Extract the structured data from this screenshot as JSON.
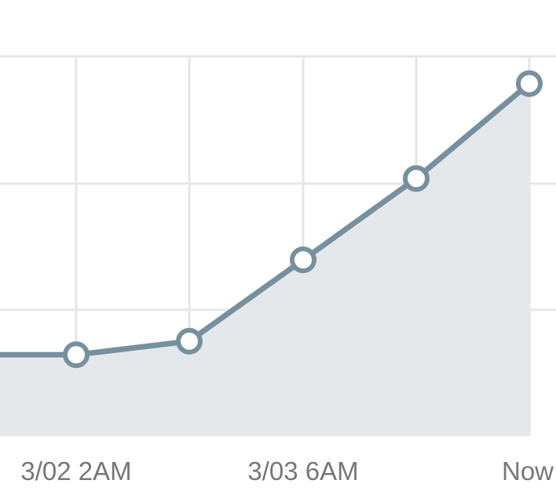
{
  "chart_data": {
    "type": "area",
    "x": [
      "",
      "3/02 2AM",
      "",
      "3/03 6AM",
      "",
      "Now"
    ],
    "series": [
      {
        "values": [
          6,
          6,
          7,
          13,
          19,
          26
        ]
      }
    ],
    "x_tick_labels": [
      "3/02 2AM",
      "3/03 6AM",
      "Now"
    ],
    "ylim": [
      0,
      28
    ],
    "y_gridlines": [
      10,
      20,
      30
    ],
    "grid": true,
    "legend": "none",
    "colors": {
      "line": "#76909f",
      "fill": "#e4e8eb",
      "marker_fill": "#ffffff",
      "grid": "#e6e6e6",
      "tick_text": "#777777"
    }
  }
}
